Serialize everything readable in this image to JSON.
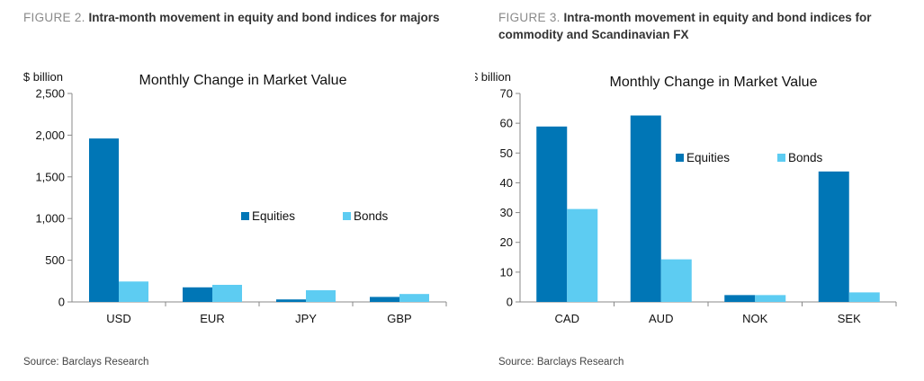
{
  "colors": {
    "equities": "#0076B6",
    "bonds": "#5DCCF2",
    "axis": "#888888"
  },
  "figures": [
    {
      "label": "FIGURE 2.",
      "title": "Intra-month movement in equity and bond indices for majors",
      "source": "Source: Barclays Research"
    },
    {
      "label": "FIGURE 3.",
      "title": "Intra-month movement in equity and bond indices for commodity and Scandinavian FX",
      "source": "Source: Barclays Research"
    }
  ],
  "chart_data": [
    {
      "type": "bar",
      "title": "Monthly Change in Market Value",
      "ylabel": "$ billion",
      "xlabel": "",
      "categories": [
        "USD",
        "EUR",
        "JPY",
        "GBP"
      ],
      "series": [
        {
          "name": "Equities",
          "values": [
            1960,
            175,
            30,
            60
          ]
        },
        {
          "name": "Bonds",
          "values": [
            245,
            205,
            140,
            95
          ]
        }
      ],
      "ylim": [
        0,
        2500
      ],
      "yticks": [
        0,
        500,
        1000,
        1500,
        2000,
        2500
      ],
      "yticklabels": [
        "0",
        "500",
        "1,000",
        "1,500",
        "2,000",
        "2,500"
      ],
      "grid": false,
      "legend": "center-right"
    },
    {
      "type": "bar",
      "title": "Monthly Change in Market Value",
      "ylabel": "$ billion",
      "xlabel": "",
      "categories": [
        "CAD",
        "AUD",
        "NOK",
        "SEK"
      ],
      "series": [
        {
          "name": "Equities",
          "values": [
            58.9,
            62.6,
            2.3,
            43.8
          ]
        },
        {
          "name": "Bonds",
          "values": [
            31.2,
            14.3,
            2.3,
            3.2
          ]
        }
      ],
      "ylim": [
        0,
        70
      ],
      "yticks": [
        0,
        10,
        20,
        30,
        40,
        50,
        60,
        70
      ],
      "yticklabels": [
        "0",
        "10",
        "20",
        "30",
        "40",
        "50",
        "60",
        "70"
      ],
      "grid": false,
      "legend": "top-right"
    }
  ]
}
